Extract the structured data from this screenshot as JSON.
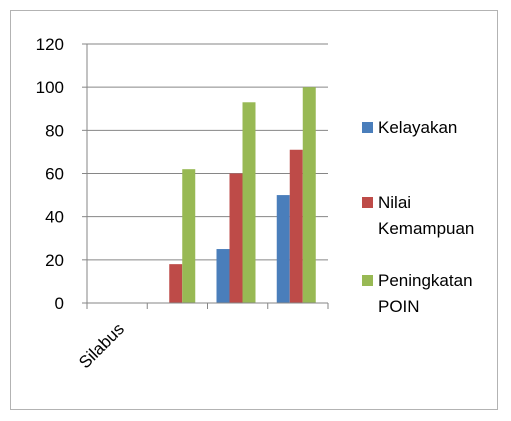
{
  "chart_data": {
    "type": "bar",
    "categories": [
      "Silabus",
      "",
      "",
      ""
    ],
    "series": [
      {
        "name": "Kelayakan",
        "color": "#4a7ebb",
        "values": [
          0,
          0,
          25,
          50
        ]
      },
      {
        "name": "Nilai Kemampuan",
        "color": "#be4b48",
        "values": [
          0,
          18,
          60,
          71
        ]
      },
      {
        "name": "Peningkatan POIN",
        "color": "#98b954",
        "values": [
          0,
          62,
          93,
          100
        ]
      }
    ],
    "ylim": [
      0,
      120
    ],
    "yticks": [
      0,
      20,
      40,
      60,
      80,
      100,
      120
    ],
    "grid": true,
    "legend_position": "right"
  }
}
